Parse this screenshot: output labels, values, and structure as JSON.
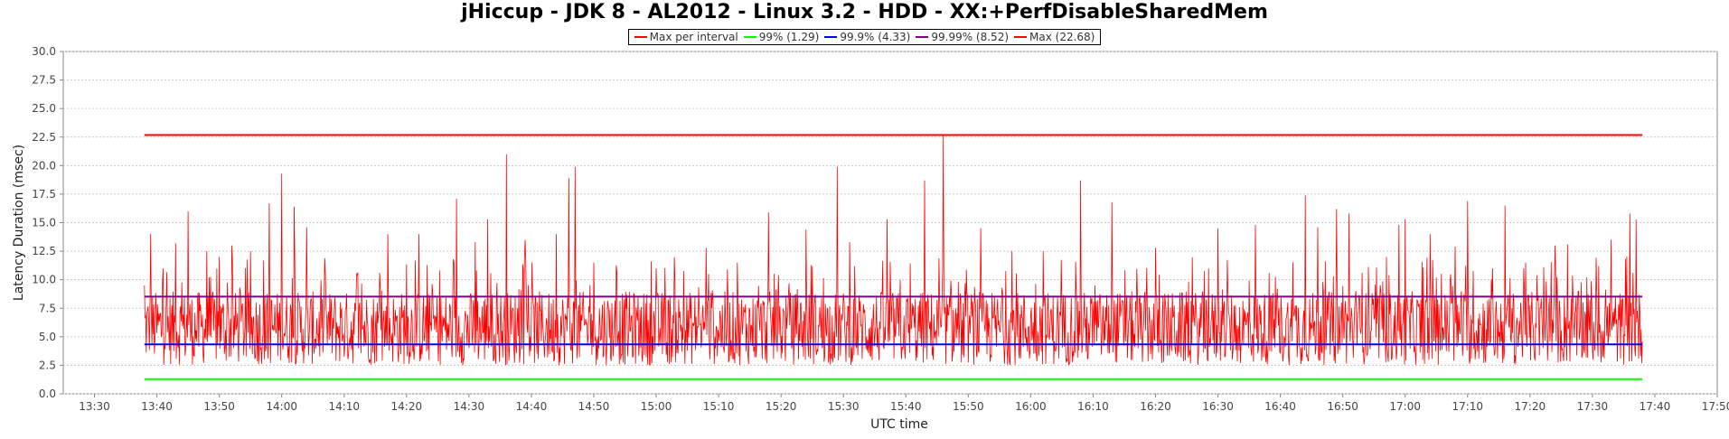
{
  "chart_data": {
    "type": "line",
    "title": "jHiccup - JDK 8 - AL2012 - Linux 3.2 - HDD - XX:+PerfDisableSharedMem",
    "xlabel": "UTC time",
    "ylabel": "Latency Duration (msec)",
    "ylim": [
      0,
      30
    ],
    "xlim": [
      "13:25",
      "17:50"
    ],
    "x_ticks": [
      "13:30",
      "13:40",
      "13:50",
      "14:00",
      "14:10",
      "14:20",
      "14:30",
      "14:40",
      "14:50",
      "15:00",
      "15:10",
      "15:20",
      "15:30",
      "15:40",
      "15:50",
      "16:00",
      "16:10",
      "16:20",
      "16:30",
      "16:40",
      "16:50",
      "17:00",
      "17:10",
      "17:20",
      "17:30",
      "17:40",
      "17:50"
    ],
    "y_ticks": [
      0.0,
      2.5,
      5.0,
      7.5,
      10.0,
      12.5,
      15.0,
      17.5,
      20.0,
      22.5,
      25.0,
      27.5,
      30.0
    ],
    "grid": true,
    "legend_position": "top-center",
    "series": [
      {
        "name": "Max per interval",
        "color": "#ff0000",
        "x_start": "13:38",
        "x_end": "17:38",
        "baseline_range": [
          2.5,
          9.0
        ],
        "peaks": [
          {
            "x": "13:38",
            "y": 9.5
          },
          {
            "x": "13:39",
            "y": 14.0
          },
          {
            "x": "13:41",
            "y": 11.0
          },
          {
            "x": "13:43",
            "y": 13.2
          },
          {
            "x": "13:45",
            "y": 16.0
          },
          {
            "x": "13:48",
            "y": 12.5
          },
          {
            "x": "13:50",
            "y": 12.0
          },
          {
            "x": "13:52",
            "y": 13.0
          },
          {
            "x": "13:55",
            "y": 12.5
          },
          {
            "x": "13:58",
            "y": 16.7
          },
          {
            "x": "14:00",
            "y": 19.3
          },
          {
            "x": "14:02",
            "y": 16.4
          },
          {
            "x": "14:04",
            "y": 14.6
          },
          {
            "x": "14:07",
            "y": 10.5
          },
          {
            "x": "14:12",
            "y": 10.5
          },
          {
            "x": "14:17",
            "y": 14.0
          },
          {
            "x": "14:22",
            "y": 14.0
          },
          {
            "x": "14:28",
            "y": 17.1
          },
          {
            "x": "14:31",
            "y": 13.3
          },
          {
            "x": "14:33",
            "y": 15.3
          },
          {
            "x": "14:36",
            "y": 21.0
          },
          {
            "x": "14:39",
            "y": 13.5
          },
          {
            "x": "14:44",
            "y": 14.0
          },
          {
            "x": "14:46",
            "y": 18.9
          },
          {
            "x": "14:47",
            "y": 19.9
          },
          {
            "x": "14:50",
            "y": 11.5
          },
          {
            "x": "15:00",
            "y": 11.0
          },
          {
            "x": "15:08",
            "y": 12.8
          },
          {
            "x": "15:13",
            "y": 11.5
          },
          {
            "x": "15:18",
            "y": 15.9
          },
          {
            "x": "15:24",
            "y": 14.4
          },
          {
            "x": "15:29",
            "y": 19.9
          },
          {
            "x": "15:31",
            "y": 13.3
          },
          {
            "x": "15:37",
            "y": 15.3
          },
          {
            "x": "15:43",
            "y": 18.7
          },
          {
            "x": "15:46",
            "y": 22.68
          },
          {
            "x": "15:52",
            "y": 14.5
          },
          {
            "x": "15:57",
            "y": 12.5
          },
          {
            "x": "16:02",
            "y": 12.5
          },
          {
            "x": "16:08",
            "y": 18.7
          },
          {
            "x": "16:13",
            "y": 16.8
          },
          {
            "x": "16:20",
            "y": 12.8
          },
          {
            "x": "16:30",
            "y": 14.5
          },
          {
            "x": "16:36",
            "y": 14.8
          },
          {
            "x": "16:44",
            "y": 17.4
          },
          {
            "x": "16:46",
            "y": 14.6
          },
          {
            "x": "16:49",
            "y": 16.2
          },
          {
            "x": "16:51",
            "y": 15.8
          },
          {
            "x": "16:57",
            "y": 12.0
          },
          {
            "x": "16:59",
            "y": 14.8
          },
          {
            "x": "17:00",
            "y": 15.3
          },
          {
            "x": "17:04",
            "y": 14.0
          },
          {
            "x": "17:08",
            "y": 12.9
          },
          {
            "x": "17:10",
            "y": 16.9
          },
          {
            "x": "17:14",
            "y": 11.0
          },
          {
            "x": "17:16",
            "y": 16.5
          },
          {
            "x": "17:19",
            "y": 11.0
          },
          {
            "x": "17:24",
            "y": 13.0
          },
          {
            "x": "17:26",
            "y": 13.1
          },
          {
            "x": "17:31",
            "y": 11.2
          },
          {
            "x": "17:33",
            "y": 13.5
          },
          {
            "x": "17:36",
            "y": 15.8
          },
          {
            "x": "17:37",
            "y": 15.3
          }
        ]
      },
      {
        "name": "99%",
        "label": "99% (1.29)",
        "color": "#00ff00",
        "value": 1.29,
        "x_start": "13:38",
        "x_end": "17:38"
      },
      {
        "name": "99.9%",
        "label": "99.9% (4.33)",
        "color": "#0000ff",
        "value": 4.33,
        "x_start": "13:38",
        "x_end": "17:38"
      },
      {
        "name": "99.99%",
        "label": "99.99% (8.52)",
        "color": "#800080",
        "value": 8.52,
        "x_start": "13:38",
        "x_end": "17:38"
      },
      {
        "name": "Max",
        "label": "Max (22.68)",
        "color": "#ff0000",
        "value": 22.68,
        "x_start": "13:38",
        "x_end": "17:38"
      }
    ]
  }
}
